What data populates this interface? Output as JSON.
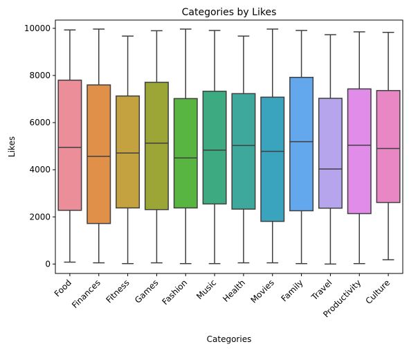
{
  "chart_data": {
    "type": "box",
    "title": "Categories by Likes",
    "xlabel": "Categories",
    "ylabel": "Likes",
    "ylim": [
      -400,
      10350
    ],
    "yticks": [
      0,
      2000,
      4000,
      6000,
      8000,
      10000
    ],
    "grid": false,
    "line_color": "#3f3f3f",
    "categories": [
      "Food",
      "Finances",
      "Fitness",
      "Games",
      "Fashion",
      "Music",
      "Health",
      "Movies",
      "Family",
      "Travel",
      "Productivity",
      "Culture"
    ],
    "colors": [
      "#ec8e99",
      "#e09048",
      "#c3a23f",
      "#9ca636",
      "#59b541",
      "#3eaa82",
      "#3fa89c",
      "#3aa3bd",
      "#63a7ec",
      "#b6a5ec",
      "#e28ce9",
      "#e887c4"
    ],
    "boxes": [
      {
        "min": 80,
        "q1": 2280,
        "median": 4950,
        "q3": 7800,
        "max": 9930
      },
      {
        "min": 50,
        "q1": 1720,
        "median": 4570,
        "q3": 7600,
        "max": 9970
      },
      {
        "min": 20,
        "q1": 2380,
        "median": 4710,
        "q3": 7130,
        "max": 9670
      },
      {
        "min": 50,
        "q1": 2310,
        "median": 5130,
        "q3": 7710,
        "max": 9900
      },
      {
        "min": 20,
        "q1": 2380,
        "median": 4500,
        "q3": 7020,
        "max": 9970
      },
      {
        "min": 20,
        "q1": 2550,
        "median": 4830,
        "q3": 7330,
        "max": 9910
      },
      {
        "min": 50,
        "q1": 2330,
        "median": 5030,
        "q3": 7230,
        "max": 9670
      },
      {
        "min": 50,
        "q1": 1810,
        "median": 4780,
        "q3": 7080,
        "max": 9970
      },
      {
        "min": 20,
        "q1": 2260,
        "median": 5190,
        "q3": 7920,
        "max": 9910
      },
      {
        "min": 0,
        "q1": 2370,
        "median": 4030,
        "q3": 7030,
        "max": 9730
      },
      {
        "min": 20,
        "q1": 2140,
        "median": 5040,
        "q3": 7430,
        "max": 9850
      },
      {
        "min": 180,
        "q1": 2610,
        "median": 4900,
        "q3": 7360,
        "max": 9830
      }
    ]
  }
}
